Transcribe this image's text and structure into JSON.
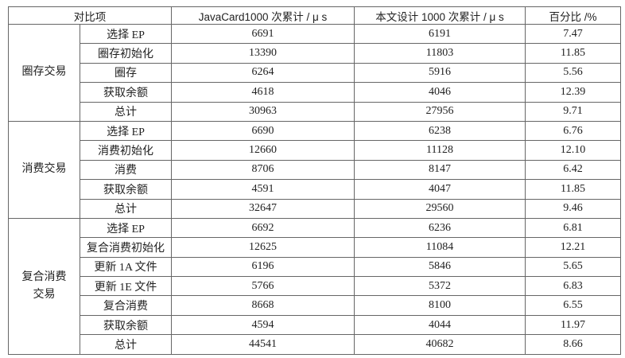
{
  "table": {
    "header": [
      "对比项",
      "JavaCard1000 次累计 / μ s",
      "本文设计 1000 次累计 / μ s",
      "百分比 /%"
    ],
    "groups": [
      {
        "label": "圈存交易",
        "rows": [
          [
            "选择 EP",
            "6691",
            "6191",
            "7.47"
          ],
          [
            "圈存初始化",
            "13390",
            "11803",
            "11.85"
          ],
          [
            "圈存",
            "6264",
            "5916",
            "5.56"
          ],
          [
            "获取余额",
            "4618",
            "4046",
            "12.39"
          ],
          [
            "总计",
            "30963",
            "27956",
            "9.71"
          ]
        ]
      },
      {
        "label": "消费交易",
        "rows": [
          [
            "选择 EP",
            "6690",
            "6238",
            "6.76"
          ],
          [
            "消费初始化",
            "12660",
            "11128",
            "12.10"
          ],
          [
            "消费",
            "8706",
            "8147",
            "6.42"
          ],
          [
            "获取余额",
            "4591",
            "4047",
            "11.85"
          ],
          [
            "总计",
            "32647",
            "29560",
            "9.46"
          ]
        ]
      },
      {
        "label": "复合消费交易",
        "rows": [
          [
            "选择 EP",
            "6692",
            "6236",
            "6.81"
          ],
          [
            "复合消费初始化",
            "12625",
            "11084",
            "12.21"
          ],
          [
            "更新 1A 文件",
            "6196",
            "5846",
            "5.65"
          ],
          [
            "更新 1E 文件",
            "5766",
            "5372",
            "6.83"
          ],
          [
            "复合消费",
            "8668",
            "8100",
            "6.55"
          ],
          [
            "获取余额",
            "4594",
            "4044",
            "11.97"
          ],
          [
            "总计",
            "44541",
            "40682",
            "8.66"
          ]
        ]
      }
    ]
  }
}
